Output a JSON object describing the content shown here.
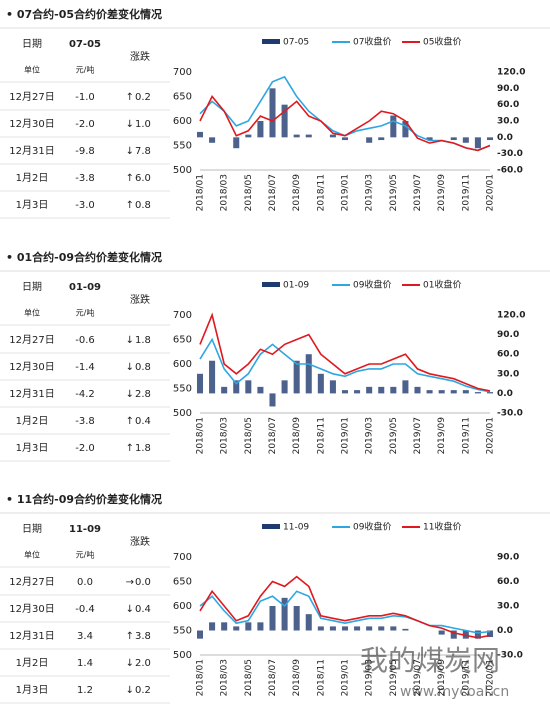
{
  "sections": [
    {
      "title": "• 07合约-05合约价差变化情况",
      "table": {
        "header": [
          "日期",
          "07-05",
          "涨跌"
        ],
        "units": [
          "单位",
          "元/吨"
        ],
        "rows": [
          {
            "date": "12月27日",
            "spread": "-1.0",
            "arrow": "↑",
            "change": "0.2"
          },
          {
            "date": "12月30日",
            "spread": "-2.0",
            "arrow": "↓",
            "change": "1.0"
          },
          {
            "date": "12月31日",
            "spread": "-9.8",
            "arrow": "↓",
            "change": "7.8"
          },
          {
            "date": "1月2日",
            "spread": "-3.8",
            "arrow": "↑",
            "change": "6.0"
          },
          {
            "date": "1月3日",
            "spread": "-3.0",
            "arrow": "↑",
            "change": "0.8"
          }
        ]
      }
    },
    {
      "title": "• 01合约-09合约价差变化情况",
      "table": {
        "header": [
          "日期",
          "01-09",
          "涨跌"
        ],
        "units": [
          "单位",
          "元/吨"
        ],
        "rows": [
          {
            "date": "12月27日",
            "spread": "-0.6",
            "arrow": "↓",
            "change": "1.8"
          },
          {
            "date": "12月30日",
            "spread": "-1.4",
            "arrow": "↓",
            "change": "0.8"
          },
          {
            "date": "12月31日",
            "spread": "-4.2",
            "arrow": "↓",
            "change": "2.8"
          },
          {
            "date": "1月2日",
            "spread": "-3.8",
            "arrow": "↑",
            "change": "0.4"
          },
          {
            "date": "1月3日",
            "spread": "-2.0",
            "arrow": "↑",
            "change": "1.8"
          }
        ]
      }
    },
    {
      "title": "• 11合约-09合约价差变化情况",
      "table": {
        "header": [
          "日期",
          "11-09",
          "涨跌"
        ],
        "units": [
          "单位",
          "元/吨"
        ],
        "rows": [
          {
            "date": "12月27日",
            "spread": "0.0",
            "arrow": "→",
            "change": "0.0"
          },
          {
            "date": "12月30日",
            "spread": "-0.4",
            "arrow": "↓",
            "change": "0.4"
          },
          {
            "date": "12月31日",
            "spread": "3.4",
            "arrow": "↑",
            "change": "3.8"
          },
          {
            "date": "1月2日",
            "spread": "1.4",
            "arrow": "↓",
            "change": "2.0"
          },
          {
            "date": "1月3日",
            "spread": "1.2",
            "arrow": "↓",
            "change": "0.2"
          }
        ]
      }
    }
  ],
  "chart_data": [
    {
      "type": "combo",
      "categories": [
        "2018/01",
        null,
        "2018/03",
        null,
        "2018/05",
        null,
        "2018/07",
        null,
        "2018/09",
        null,
        "2018/11",
        null,
        "2019/01",
        null,
        "2019/03",
        null,
        "2019/05",
        null,
        "2019/07",
        null,
        "2019/09",
        null,
        "2019/11",
        null,
        "2020/01"
      ],
      "series": [
        {
          "name": "07-05",
          "type": "bar",
          "axis": "y2",
          "color": "#1f3a6e",
          "values": [
            10,
            -10,
            0,
            -20,
            5,
            30,
            90,
            60,
            5,
            5,
            0,
            5,
            -5,
            0,
            -10,
            -5,
            40,
            30,
            0,
            -5,
            0,
            -5,
            -10,
            -20,
            -5
          ]
        },
        {
          "name": "07收盘价",
          "type": "line",
          "color": "#2ea7e0",
          "values": [
            615,
            640,
            620,
            590,
            600,
            640,
            680,
            690,
            650,
            620,
            600,
            580,
            570,
            580,
            585,
            590,
            600,
            590,
            570,
            560,
            560,
            555,
            545,
            540,
            550
          ]
        },
        {
          "name": "05收盘价",
          "type": "line",
          "color": "#e0191e",
          "values": [
            600,
            650,
            620,
            570,
            580,
            610,
            600,
            620,
            640,
            610,
            600,
            575,
            570,
            585,
            600,
            620,
            615,
            600,
            565,
            555,
            560,
            555,
            545,
            540,
            550
          ]
        }
      ],
      "ylim": [
        500,
        700
      ],
      "yticks": [
        500,
        550,
        600,
        650,
        700
      ],
      "y2lim": [
        -60,
        120
      ],
      "y2ticks": [
        {
          "value": 120,
          "label": "120.0"
        },
        {
          "value": 90,
          "label": "90.0"
        },
        {
          "value": 60,
          "label": "60.0"
        },
        {
          "value": 30,
          "label": "30.0"
        },
        {
          "value": 0,
          "label": "0.0"
        },
        {
          "value": -30,
          "label": "-30.0"
        },
        {
          "value": -60,
          "label": "-60.0"
        }
      ]
    },
    {
      "type": "combo",
      "categories": [
        "2018/01",
        null,
        "2018/03",
        null,
        "2018/05",
        null,
        "2018/07",
        null,
        "2018/09",
        null,
        "2018/11",
        null,
        "2019/01",
        null,
        "2019/03",
        null,
        "2019/05",
        null,
        "2019/07",
        null,
        "2019/09",
        null,
        "2019/11",
        null,
        "2020/01"
      ],
      "series": [
        {
          "name": "01-09",
          "type": "bar",
          "axis": "y2",
          "color": "#1f3a6e",
          "values": [
            30,
            50,
            10,
            20,
            20,
            10,
            -20,
            20,
            50,
            60,
            30,
            20,
            5,
            5,
            10,
            10,
            10,
            20,
            10,
            5,
            5,
            5,
            5,
            2,
            2
          ]
        },
        {
          "name": "09收盘价",
          "type": "line",
          "color": "#2ea7e0",
          "values": [
            610,
            650,
            590,
            560,
            580,
            620,
            640,
            620,
            600,
            600,
            590,
            580,
            575,
            585,
            590,
            590,
            600,
            600,
            580,
            575,
            570,
            565,
            555,
            548,
            543
          ]
        },
        {
          "name": "01收盘价",
          "type": "line",
          "color": "#e0191e",
          "values": [
            640,
            700,
            600,
            580,
            600,
            630,
            620,
            640,
            650,
            660,
            620,
            600,
            580,
            590,
            600,
            600,
            610,
            620,
            590,
            580,
            575,
            570,
            560,
            550,
            545
          ]
        }
      ],
      "ylim": [
        500,
        700
      ],
      "yticks": [
        500,
        550,
        600,
        650,
        700
      ],
      "y2lim": [
        -30,
        120
      ],
      "y2ticks": [
        {
          "value": 120,
          "label": "120.0"
        },
        {
          "value": 90,
          "label": "90.0"
        },
        {
          "value": 60,
          "label": "60.0"
        },
        {
          "value": 30,
          "label": "30.0"
        },
        {
          "value": 0,
          "label": "0.0"
        },
        {
          "value": -30,
          "label": "-30.0"
        }
      ]
    },
    {
      "type": "combo",
      "categories": [
        "2018/01",
        null,
        "2018/03",
        null,
        "2018/05",
        null,
        "2018/07",
        null,
        "2018/09",
        null,
        "2018/11",
        null,
        "2019/01",
        null,
        "2019/03",
        null,
        "2019/05",
        null,
        "2019/07",
        null,
        "2019/09",
        null,
        "2019/11",
        null,
        "2020/01"
      ],
      "series": [
        {
          "name": "11-09",
          "type": "bar",
          "axis": "y2",
          "color": "#1f3a6e",
          "values": [
            -10,
            10,
            10,
            5,
            10,
            10,
            30,
            40,
            30,
            20,
            5,
            5,
            5,
            5,
            5,
            5,
            5,
            2,
            0,
            0,
            -5,
            -10,
            -10,
            -10,
            -8
          ]
        },
        {
          "name": "09收盘价",
          "type": "line",
          "color": "#2ea7e0",
          "values": [
            600,
            620,
            590,
            565,
            570,
            610,
            620,
            600,
            630,
            620,
            575,
            570,
            565,
            570,
            575,
            575,
            580,
            578,
            570,
            560,
            560,
            555,
            550,
            545,
            548
          ]
        },
        {
          "name": "11收盘价",
          "type": "line",
          "color": "#e0191e",
          "values": [
            590,
            630,
            600,
            570,
            580,
            620,
            650,
            640,
            660,
            640,
            580,
            575,
            570,
            575,
            580,
            580,
            585,
            580,
            570,
            560,
            555,
            545,
            540,
            535,
            540
          ]
        }
      ],
      "ylim": [
        500,
        700
      ],
      "yticks": [
        500,
        550,
        600,
        650,
        700
      ],
      "y2lim": [
        -30,
        90
      ],
      "y2ticks": [
        {
          "value": 90,
          "label": "90.0"
        },
        {
          "value": 60,
          "label": "60.0"
        },
        {
          "value": 30,
          "label": "30.0"
        },
        {
          "value": 0,
          "label": "0.0"
        },
        {
          "value": -30,
          "label": "-30.0"
        }
      ]
    }
  ],
  "watermark": {
    "name": "我的煤炭网",
    "url": "www.mycoal.cn"
  }
}
